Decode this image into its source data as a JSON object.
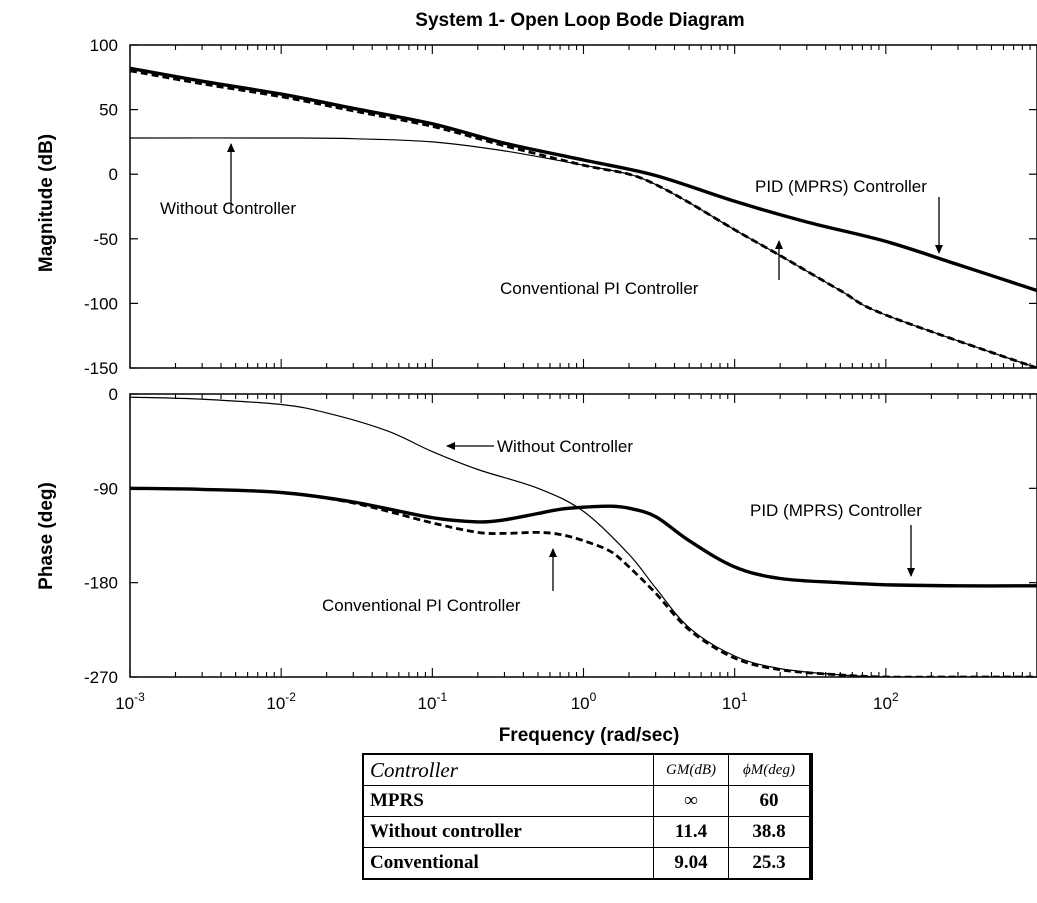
{
  "chart_data": [
    {
      "type": "line",
      "title": "System 1- Open Loop Bode Diagram",
      "xlabel": "",
      "ylabel": "Magnitude (dB)",
      "xscale": "log",
      "xlim": [
        0.001,
        1000
      ],
      "ylim": [
        -150,
        100
      ],
      "yticks": [
        100,
        50,
        0,
        -50,
        -100,
        -150
      ],
      "ytick_labels": [
        "100",
        "50",
        "0",
        "-50",
        "-100",
        "-150"
      ],
      "series": [
        {
          "name": "Without Controller",
          "x": [
            0.001,
            0.01,
            0.03,
            0.1,
            0.3,
            1,
            2,
            3,
            5,
            10,
            20,
            50,
            100,
            1000
          ],
          "y": [
            28,
            28,
            27.5,
            25,
            18,
            7,
            0,
            -8,
            -22,
            -43,
            -63,
            -90,
            -109,
            -150
          ],
          "style": "thin"
        },
        {
          "name": "Conventional PI Controller",
          "x": [
            0.001,
            0.003,
            0.01,
            0.03,
            0.1,
            0.3,
            1,
            2,
            3,
            5,
            10,
            20,
            50,
            100,
            1000
          ],
          "y": [
            80,
            70,
            60,
            49,
            37,
            22,
            7,
            0,
            -8,
            -22,
            -43,
            -63,
            -90,
            -109,
            -150
          ],
          "style": "dashed"
        },
        {
          "name": "PID (MPRS) Controller",
          "x": [
            0.001,
            0.003,
            0.01,
            0.03,
            0.1,
            0.3,
            1,
            3,
            10,
            30,
            100,
            300,
            1000
          ],
          "y": [
            82,
            72,
            62,
            51,
            39,
            24,
            11,
            -1,
            -21,
            -37,
            -52,
            -70,
            -90
          ],
          "style": "thick"
        }
      ],
      "annotations": [
        {
          "text": "Without Controller"
        },
        {
          "text": "PID (MPRS) Controller"
        },
        {
          "text": "Conventional PI Controller"
        }
      ]
    },
    {
      "type": "line",
      "title": "",
      "xlabel": "Frequency (rad/sec)",
      "ylabel": "Phase (deg)",
      "xscale": "log",
      "xlim": [
        0.001,
        1000
      ],
      "ylim": [
        -270,
        0
      ],
      "xticks": [
        0.001,
        0.01,
        0.1,
        1,
        10,
        100
      ],
      "xtick_labels": [
        {
          "base": "10",
          "exp": "-3"
        },
        {
          "base": "10",
          "exp": "-2"
        },
        {
          "base": "10",
          "exp": "-1"
        },
        {
          "base": "10",
          "exp": "0"
        },
        {
          "base": "10",
          "exp": "1"
        },
        {
          "base": "10",
          "exp": "2"
        }
      ],
      "yticks": [
        0,
        -90,
        -180,
        -270
      ],
      "ytick_labels": [
        "0",
        "-90",
        "-180",
        "-270"
      ],
      "series": [
        {
          "name": "Without Controller",
          "x": [
            0.001,
            0.003,
            0.01,
            0.02,
            0.05,
            0.1,
            0.2,
            0.5,
            1,
            2,
            3,
            5,
            10,
            20,
            50,
            100,
            300,
            1000
          ],
          "y": [
            -3,
            -5,
            -10,
            -18,
            -35,
            -55,
            -72,
            -90,
            -112,
            -153,
            -185,
            -223,
            -250,
            -262,
            -268,
            -270,
            -270,
            -270
          ],
          "style": "thin"
        },
        {
          "name": "Conventional PI Controller",
          "x": [
            0.001,
            0.003,
            0.01,
            0.03,
            0.1,
            0.2,
            0.3,
            0.5,
            0.7,
            1,
            1.5,
            2,
            3,
            5,
            10,
            20,
            50,
            100,
            300,
            1000
          ],
          "y": [
            -90,
            -91,
            -94,
            -104,
            -123,
            -132,
            -133,
            -132,
            -134,
            -140,
            -150,
            -165,
            -190,
            -225,
            -252,
            -263,
            -268,
            -270,
            -270,
            -270
          ],
          "style": "dashed"
        },
        {
          "name": "PID (MPRS) Controller",
          "x": [
            0.001,
            0.003,
            0.01,
            0.03,
            0.1,
            0.2,
            0.3,
            0.5,
            0.7,
            1,
            1.5,
            2,
            3,
            5,
            10,
            20,
            50,
            100,
            300,
            1000
          ],
          "y": [
            -90,
            -91,
            -94,
            -103,
            -118,
            -122,
            -120,
            -114,
            -110,
            -108,
            -107,
            -109,
            -117,
            -140,
            -165,
            -176,
            -180,
            -182,
            -183,
            -183
          ],
          "style": "thick"
        }
      ],
      "annotations": [
        {
          "text": "Without Controller"
        },
        {
          "text": "PID (MPRS) Controller"
        },
        {
          "text": "Conventional PI Controller"
        }
      ]
    }
  ],
  "table": {
    "headers": [
      "Controller",
      "GM(dB)",
      "ϕM(deg)"
    ],
    "rows": [
      [
        "MPRS",
        "∞",
        "60"
      ],
      [
        "Without controller",
        "11.4",
        "38.8"
      ],
      [
        "Conventional",
        "9.04",
        "25.3"
      ]
    ]
  }
}
